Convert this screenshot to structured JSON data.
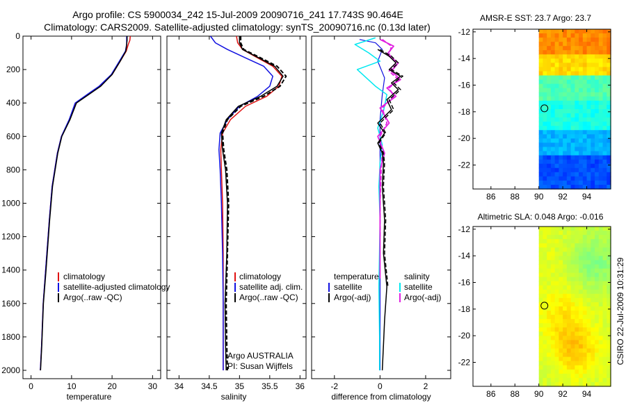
{
  "title_line1": "Argo profile: CS 5900034_242 15-Jul-2009 20090716_241 17.743S 90.464E",
  "title_line2": "Climatology: CARS2009. Satellite-adjusted climatology: synTS_20090716.nc (0.13d later)",
  "footer": "CSIRO 22-Jul-2009 10:31:29",
  "colors": {
    "climatology": "#e01010",
    "satellite": "#1010e0",
    "argo": "#000000",
    "cyan": "#00e8f0",
    "magenta": "#e020e0"
  },
  "chart_data": [
    {
      "type": "line",
      "id": "temperature",
      "xlabel": "temperature",
      "xlim": [
        -2,
        32
      ],
      "ylim": [
        2050,
        0
      ],
      "xticks": [
        "0",
        "10",
        "20",
        "30"
      ],
      "yticks": [
        "0",
        "200",
        "400",
        "600",
        "800",
        "1000",
        "1200",
        "1400",
        "1600",
        "1800",
        "2000"
      ],
      "legend": [
        "climatology",
        "satellite-adjusted climatology",
        "Argo(..raw -QC)"
      ],
      "series": [
        {
          "name": "climatology",
          "color": "red",
          "width": 1.5,
          "x": [
            24.5,
            24.4,
            24,
            23.5,
            22,
            20,
            17,
            14,
            11,
            9.5,
            7.5,
            6.5,
            5.2,
            4.5,
            3.6,
            3.0,
            2.6,
            2.3
          ],
          "y": [
            0,
            25,
            50,
            90,
            150,
            230,
            300,
            350,
            400,
            500,
            600,
            700,
            900,
            1100,
            1400,
            1600,
            1850,
            2000
          ]
        },
        {
          "name": "satellite-adjusted climatology",
          "color": "blue",
          "width": 1.5,
          "x": [
            23.6,
            23.6,
            23.6,
            23.3,
            21.8,
            19.8,
            16.8,
            13.8,
            10.9,
            9.4,
            7.5,
            6.5,
            5.2,
            4.5,
            3.6,
            3.0,
            2.6,
            2.3
          ],
          "y": [
            0,
            25,
            50,
            90,
            150,
            230,
            300,
            350,
            400,
            500,
            600,
            700,
            900,
            1100,
            1400,
            1600,
            1850,
            2000
          ]
        },
        {
          "name": "Argo(..raw -QC)",
          "color": "black",
          "width": 1.5,
          "x": [
            23.7,
            23.7,
            23.6,
            23.4,
            22,
            20,
            17.2,
            14.2,
            11.2,
            9.6,
            7.6,
            6.6,
            5.3,
            4.6,
            3.7,
            3.05,
            2.65,
            2.35
          ],
          "y": [
            0,
            25,
            50,
            90,
            150,
            230,
            300,
            350,
            400,
            500,
            600,
            700,
            900,
            1100,
            1400,
            1600,
            1850,
            2000
          ]
        }
      ]
    },
    {
      "type": "line",
      "id": "salinity",
      "xlabel": "salinity",
      "xlim": [
        33.8,
        36.1
      ],
      "ylim": [
        2050,
        0
      ],
      "xticks": [
        "34",
        "34.5",
        "35",
        "35.5",
        "36"
      ],
      "legend": [
        "climatology",
        "satellite adj. clim.",
        "Argo(..raw -QC)"
      ],
      "annotation_line1": "Argo AUSTRALIA",
      "annotation_line2": "PI: Susan Wijffels",
      "series": [
        {
          "name": "climatology",
          "color": "red",
          "width": 1.5,
          "x": [
            34.95,
            34.97,
            35.05,
            35.3,
            35.55,
            35.7,
            35.65,
            35.45,
            35.1,
            34.85,
            34.72,
            34.69,
            34.7,
            34.72,
            34.73,
            34.73,
            34.73,
            34.73
          ],
          "y": [
            0,
            40,
            80,
            130,
            180,
            240,
            300,
            360,
            420,
            500,
            580,
            680,
            800,
            1000,
            1300,
            1600,
            1850,
            2000
          ]
        },
        {
          "name": "satellite adj. clim.",
          "color": "blue",
          "width": 1.5,
          "x": [
            34.52,
            34.6,
            34.8,
            35.1,
            35.4,
            35.55,
            35.5,
            35.3,
            35.0,
            34.8,
            34.68,
            34.66,
            34.68,
            34.7,
            34.72,
            34.73,
            34.73,
            34.73
          ],
          "y": [
            0,
            40,
            80,
            130,
            180,
            240,
            300,
            360,
            420,
            500,
            580,
            680,
            800,
            1000,
            1300,
            1600,
            1850,
            2000
          ]
        },
        {
          "name": "Argo",
          "color": "black",
          "width": 1.5,
          "x": [
            35.0,
            35.0,
            35.05,
            35.32,
            35.58,
            35.72,
            35.62,
            35.35,
            34.98,
            34.78,
            34.7,
            34.72,
            34.77,
            34.8,
            34.79,
            34.76,
            34.77,
            34.78
          ],
          "y": [
            0,
            40,
            80,
            130,
            180,
            240,
            300,
            360,
            420,
            500,
            580,
            680,
            800,
            1000,
            1300,
            1600,
            1850,
            2000
          ]
        },
        {
          "name": "Argo-QC",
          "color": "black",
          "width": 2,
          "dash": "6,3",
          "x": [
            35.02,
            35.02,
            35.07,
            35.35,
            35.62,
            35.77,
            35.67,
            35.4,
            35.02,
            34.8,
            34.72,
            34.74,
            34.79,
            34.82,
            34.8,
            34.78,
            34.79,
            34.8
          ],
          "y": [
            0,
            40,
            80,
            130,
            180,
            240,
            300,
            360,
            420,
            500,
            580,
            680,
            800,
            1000,
            1300,
            1600,
            1850,
            2000
          ]
        }
      ]
    },
    {
      "type": "line",
      "id": "difference",
      "xlabel": "difference from climatology",
      "xlim": [
        -3,
        3.1
      ],
      "ylim": [
        2050,
        0
      ],
      "xticks": [
        "-2",
        "0",
        "2"
      ],
      "legend_header_left": "temperature",
      "legend_header_right": "salinity",
      "legend_left": [
        "satellite",
        "Argo(-adj)"
      ],
      "legend_right": [
        "satellite",
        "Argo(-adj)"
      ],
      "series": [
        {
          "name": "temperature satellite",
          "color": "blue",
          "width": 1.2,
          "x": [
            -0.9,
            -0.2,
            0.1,
            -0.1,
            0.2,
            0.1,
            0,
            0,
            0,
            0,
            0,
            0
          ],
          "y": [
            20,
            40,
            80,
            150,
            250,
            350,
            500,
            700,
            1000,
            1400,
            1800,
            2000
          ]
        },
        {
          "name": "salinity satellite",
          "color": "cyan",
          "width": 1.5,
          "x": [
            -0.2,
            -1.1,
            -0.5,
            0.0,
            -1.0,
            -0.6,
            -0.2,
            0.3,
            0.15,
            -0.1,
            0.1,
            0.0,
            -0.05,
            0.0,
            -0.05,
            -0.02,
            -0.02
          ],
          "y": [
            10,
            50,
            100,
            150,
            200,
            250,
            300,
            350,
            450,
            550,
            650,
            760,
            900,
            1100,
            1500,
            1800,
            2000
          ]
        },
        {
          "name": "salinity Argo(-adj) a",
          "color": "magenta",
          "width": 1.8,
          "x": [
            0.0,
            0.6,
            0.3,
            0.8,
            0.5,
            0.9,
            0.3,
            0.7,
            0.0,
            0.4,
            -0.1,
            0.2,
            0.0,
            0.0,
            0.0,
            0.0,
            0.0
          ],
          "y": [
            20,
            60,
            110,
            160,
            210,
            260,
            310,
            360,
            430,
            520,
            600,
            700,
            800,
            1000,
            1200,
            1350,
            1450
          ]
        },
        {
          "name": "salinity Argo(-adj) b",
          "color": "magenta",
          "width": 1.8,
          "dash": "6,3",
          "x": [
            0.1,
            0.5,
            0.4,
            0.7,
            0.4,
            0.8,
            0.4,
            0.6,
            0.1,
            0.3,
            0.0,
            0.1,
            0.05,
            0.0,
            0.0
          ],
          "y": [
            20,
            60,
            110,
            160,
            210,
            260,
            310,
            360,
            430,
            520,
            600,
            700,
            800,
            1000,
            1200
          ]
        },
        {
          "name": "temperature Argo(-adj) a",
          "color": "black",
          "width": 1.5,
          "x": [
            -0.1,
            0.4,
            0.7,
            0.4,
            0.9,
            0.5,
            0.8,
            0.3,
            0.5,
            -0.1,
            0.2,
            -0.1,
            0.1,
            0.15,
            0.1,
            0.2,
            0.15,
            0.3,
            0.2,
            0.15,
            0.1
          ],
          "y": [
            80,
            120,
            160,
            200,
            240,
            280,
            320,
            380,
            440,
            520,
            580,
            640,
            700,
            760,
            900,
            1100,
            1300,
            1500,
            1700,
            1850,
            2000
          ]
        },
        {
          "name": "temperature Argo(-adj) b",
          "color": "black",
          "width": 1.5,
          "dash": "6,3",
          "x": [
            0.0,
            0.5,
            0.8,
            0.5,
            1.0,
            0.6,
            0.9,
            0.4,
            0.6,
            0.0,
            0.25,
            -0.05,
            0.15,
            0.2,
            0.15,
            0.25,
            0.2,
            0.35
          ],
          "y": [
            80,
            120,
            160,
            200,
            240,
            280,
            320,
            380,
            440,
            520,
            580,
            640,
            700,
            760,
            900,
            1100,
            1300,
            1500
          ]
        }
      ]
    },
    {
      "type": "heatmap",
      "id": "sst",
      "title": "AMSR-E SST: 23.7 Argo: 23.7",
      "xlim": [
        84.5,
        96
      ],
      "ylim": [
        -23.8,
        -11.8
      ],
      "xticks": [
        "86",
        "88",
        "90",
        "92",
        "94"
      ],
      "yticks": [
        "-12",
        "-14",
        "-16",
        "-18",
        "-20",
        "-22"
      ],
      "data_lon_min": 90,
      "marker": [
        90.464,
        -17.743
      ],
      "colorscale": "jet",
      "bands": [
        {
          "lat_top": -11.8,
          "lat_bottom": -13.7,
          "value": 0.74
        },
        {
          "lat_top": -13.7,
          "lat_bottom": -15.3,
          "value": 0.66
        },
        {
          "lat_top": -15.3,
          "lat_bottom": -17.2,
          "value": 0.45
        },
        {
          "lat_top": -17.2,
          "lat_bottom": -19.5,
          "value": 0.4
        },
        {
          "lat_top": -19.5,
          "lat_bottom": -21.2,
          "value": 0.3
        },
        {
          "lat_top": -21.2,
          "lat_bottom": -23.8,
          "value": 0.2
        }
      ]
    },
    {
      "type": "heatmap",
      "id": "sla",
      "title": "Altimetric SLA: 0.048 Argo: -0.016",
      "xlim": [
        84.5,
        96
      ],
      "ylim": [
        -23.8,
        -11.8
      ],
      "xticks": [
        "86",
        "88",
        "90",
        "92",
        "94"
      ],
      "yticks": [
        "-12",
        "-14",
        "-16",
        "-18",
        "-20",
        "-22"
      ],
      "data_lon_min": 90,
      "marker": [
        90.464,
        -17.743
      ],
      "colorscale": "jet",
      "base_value": 0.58,
      "patches": [
        {
          "lon": 93,
          "lat": -21,
          "value": 0.68
        },
        {
          "lon": 94.5,
          "lat": -14.5,
          "value": 0.5
        },
        {
          "lon": 91,
          "lat": -14,
          "value": 0.6
        },
        {
          "lon": 92,
          "lat": -18.2,
          "value": 0.64
        }
      ]
    }
  ]
}
